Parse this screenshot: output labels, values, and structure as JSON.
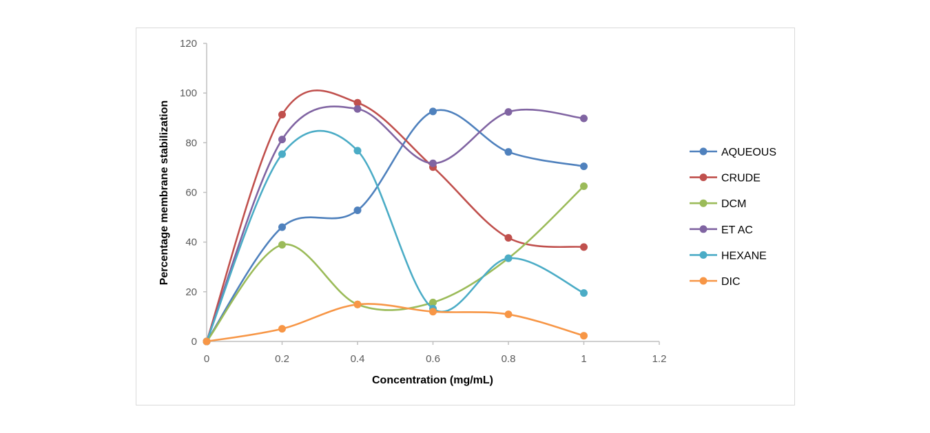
{
  "chart_data": {
    "type": "line",
    "smooth": true,
    "markers": true,
    "title": "",
    "xlabel": "Concentration (mg/mL)",
    "ylabel": "Percentage membrane stabilization",
    "xlim": [
      0,
      1.2
    ],
    "ylim": [
      0,
      120
    ],
    "xticks": [
      "0",
      "0.2",
      "0.4",
      "0.6",
      "0.8",
      "1",
      "1.2"
    ],
    "yticks": [
      "0",
      "20",
      "40",
      "60",
      "80",
      "100",
      "120"
    ],
    "grid": false,
    "legend_position": "right",
    "x": [
      0,
      0.2,
      0.4,
      0.6,
      0.8,
      1.0
    ],
    "series": [
      {
        "name": "AQUEOUS",
        "color": "#4F81BD",
        "values": [
          0,
          46.0,
          52.8,
          92.6,
          76.3,
          70.5
        ]
      },
      {
        "name": "CRUDE",
        "color": "#C0504D",
        "values": [
          0,
          91.3,
          96.1,
          70.2,
          41.7,
          38.0
        ]
      },
      {
        "name": "DCM",
        "color": "#9BBB59",
        "values": [
          0,
          38.9,
          14.9,
          15.7,
          33.5,
          62.5
        ]
      },
      {
        "name": "ET AC",
        "color": "#8064A2",
        "values": [
          0,
          81.3,
          93.6,
          71.7,
          92.4,
          89.8
        ]
      },
      {
        "name": "HEXANE",
        "color": "#4BACC6",
        "values": [
          0,
          75.4,
          76.8,
          13.2,
          33.5,
          19.5
        ]
      },
      {
        "name": "DIC",
        "color": "#F79646",
        "values": [
          0,
          5.1,
          14.9,
          12.0,
          10.9,
          2.3
        ]
      }
    ]
  }
}
